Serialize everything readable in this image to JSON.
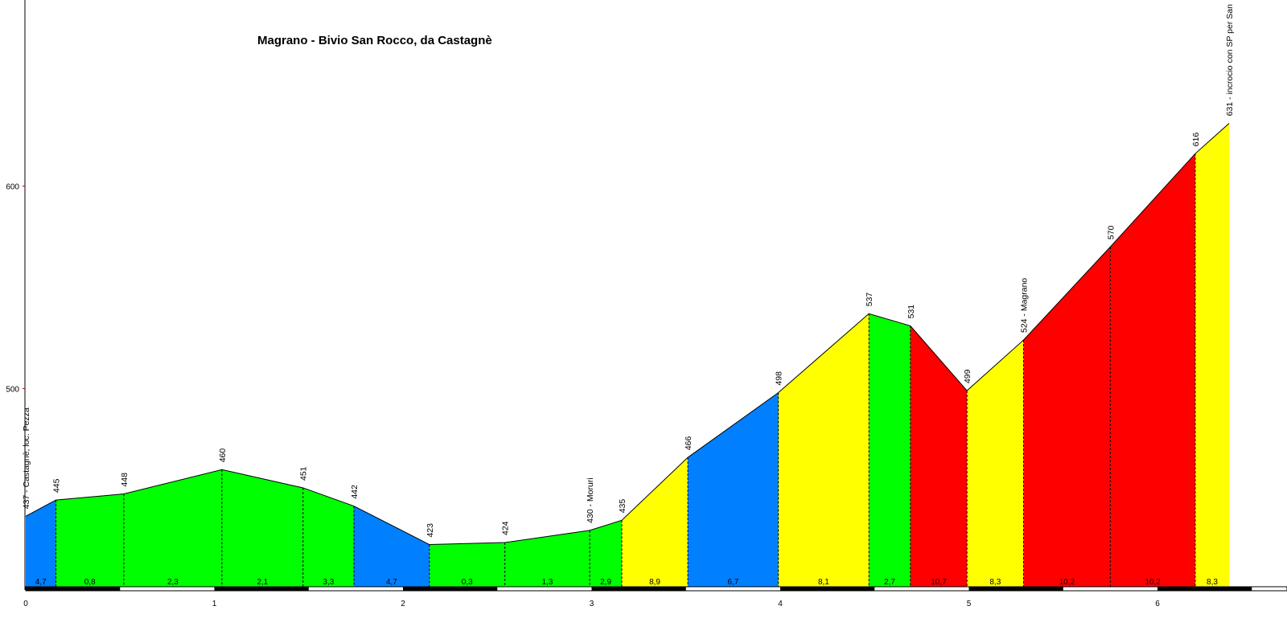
{
  "chart_data": {
    "type": "area",
    "title": "Magrano - Bivio San Rocco, da Castagnè",
    "xlabel": "",
    "ylabel": "",
    "xlim": [
      0,
      6.8
    ],
    "ylim": [
      400,
      690
    ],
    "x_ticks": [
      "0",
      "1",
      "2",
      "3",
      "4",
      "5",
      "6"
    ],
    "y_ticks": [
      "500",
      "600"
    ],
    "points": [
      {
        "x": 0.0,
        "y": 437,
        "label": "437 - Castagnè, loc. Pezza"
      },
      {
        "x": 0.16,
        "y": 445,
        "label": "445"
      },
      {
        "x": 0.52,
        "y": 448,
        "label": "448"
      },
      {
        "x": 1.04,
        "y": 460,
        "label": "460"
      },
      {
        "x": 1.47,
        "y": 451,
        "label": "451"
      },
      {
        "x": 1.74,
        "y": 442,
        "label": "442"
      },
      {
        "x": 2.14,
        "y": 423,
        "label": "423"
      },
      {
        "x": 2.54,
        "y": 424,
        "label": "424"
      },
      {
        "x": 2.99,
        "y": 430,
        "label": "430 - Moruri"
      },
      {
        "x": 3.16,
        "y": 435,
        "label": "435"
      },
      {
        "x": 3.51,
        "y": 466,
        "label": "466"
      },
      {
        "x": 3.99,
        "y": 498,
        "label": "498"
      },
      {
        "x": 4.47,
        "y": 537,
        "label": "537"
      },
      {
        "x": 4.69,
        "y": 531,
        "label": "531"
      },
      {
        "x": 4.99,
        "y": 499,
        "label": "499"
      },
      {
        "x": 5.29,
        "y": 524,
        "label": "524 - Magrano"
      },
      {
        "x": 5.75,
        "y": 570,
        "label": "570"
      },
      {
        "x": 6.2,
        "y": 616,
        "label": "616"
      },
      {
        "x": 6.38,
        "y": 631,
        "label": "631 - incrocio con SP per San"
      }
    ],
    "segments": [
      {
        "gradient": "4,7",
        "color": "#0080ff"
      },
      {
        "gradient": "0,8",
        "color": "#00ff00"
      },
      {
        "gradient": "2,3",
        "color": "#00ff00"
      },
      {
        "gradient": "2,1",
        "color": "#00ff00"
      },
      {
        "gradient": "3,3",
        "color": "#00ff00"
      },
      {
        "gradient": "4,7",
        "color": "#0080ff"
      },
      {
        "gradient": "0,3",
        "color": "#00ff00"
      },
      {
        "gradient": "1,3",
        "color": "#00ff00"
      },
      {
        "gradient": "2,9",
        "color": "#00ff00"
      },
      {
        "gradient": "8,9",
        "color": "#ffff00"
      },
      {
        "gradient": "6,7",
        "color": "#0080ff"
      },
      {
        "gradient": "8,1",
        "color": "#ffff00"
      },
      {
        "gradient": "2,7",
        "color": "#00ff00"
      },
      {
        "gradient": "10,7",
        "color": "#ff0000"
      },
      {
        "gradient": "8,3",
        "color": "#ffff00"
      },
      {
        "gradient": "10,2",
        "color": "#ff0000"
      },
      {
        "gradient": "10,2",
        "color": "#ff0000"
      },
      {
        "gradient": "8,3",
        "color": "#ffff00"
      }
    ],
    "grid": false,
    "legend": "none"
  }
}
